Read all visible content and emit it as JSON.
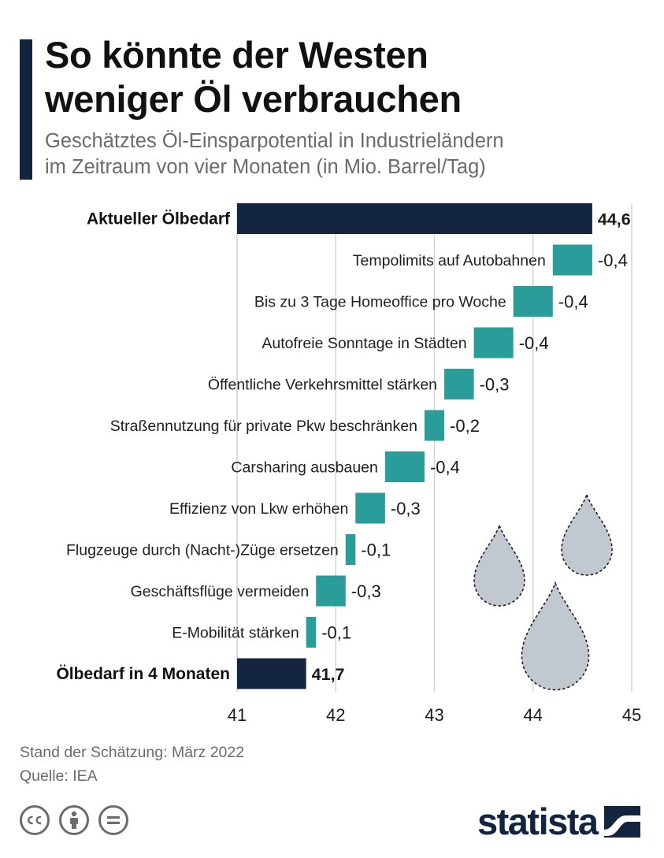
{
  "header": {
    "title_line1": "So könnte der Westen",
    "title_line2": "weniger Öl verbrauchen",
    "subtitle_line1": "Geschätztes Öl-Einsparpotential in Industrieländern",
    "subtitle_line2": "im Zeitraum von vier Monaten (in Mio. Barrel/Tag)"
  },
  "chart_data": {
    "type": "waterfall",
    "categories": [
      "Aktueller Ölbedarf",
      "Tempolimits auf Autobahnen",
      "Bis zu 3 Tage Homeoffice pro Woche",
      "Autofreie Sonntage in Städten",
      "Öffentliche Verkehrsmittel stärken",
      "Straßennutzung für private Pkw beschränken",
      "Carsharing ausbauen",
      "Effizienz von Lkw erhöhen",
      "Flugzeuge durch (Nacht-)Züge ersetzen",
      "Geschäftsflüge vermeiden",
      "E-Mobilität stärken",
      "Ölbedarf in 4 Monaten"
    ],
    "values": [
      44.6,
      -0.4,
      -0.4,
      -0.4,
      -0.3,
      -0.2,
      -0.4,
      -0.3,
      -0.1,
      -0.3,
      -0.1,
      41.7
    ],
    "value_labels": [
      "44,6",
      "-0,4",
      "-0,4",
      "-0,4",
      "-0,3",
      "-0,2",
      "-0,4",
      "-0,3",
      "-0,1",
      "-0,3",
      "-0,1",
      "41,7"
    ],
    "bar_kinds": [
      "total",
      "delta",
      "delta",
      "delta",
      "delta",
      "delta",
      "delta",
      "delta",
      "delta",
      "delta",
      "delta",
      "total"
    ],
    "xlim": [
      41,
      45
    ],
    "x_ticks": [
      41,
      42,
      43,
      44,
      45
    ],
    "x_tick_labels": [
      "41",
      "42",
      "43",
      "44",
      "45"
    ],
    "grid": true,
    "colors": {
      "total": "#13253e",
      "delta": "#2a9d9a",
      "grid": "#d4d4d4",
      "drop": "#c2c8d0"
    }
  },
  "footer": {
    "date_note": "Stand der Schätzung: März 2022",
    "source": "Quelle: IEA"
  },
  "license_icons": [
    "cc-icon",
    "by-person-icon",
    "nd-equals-icon"
  ],
  "brand": {
    "name": "statista"
  }
}
